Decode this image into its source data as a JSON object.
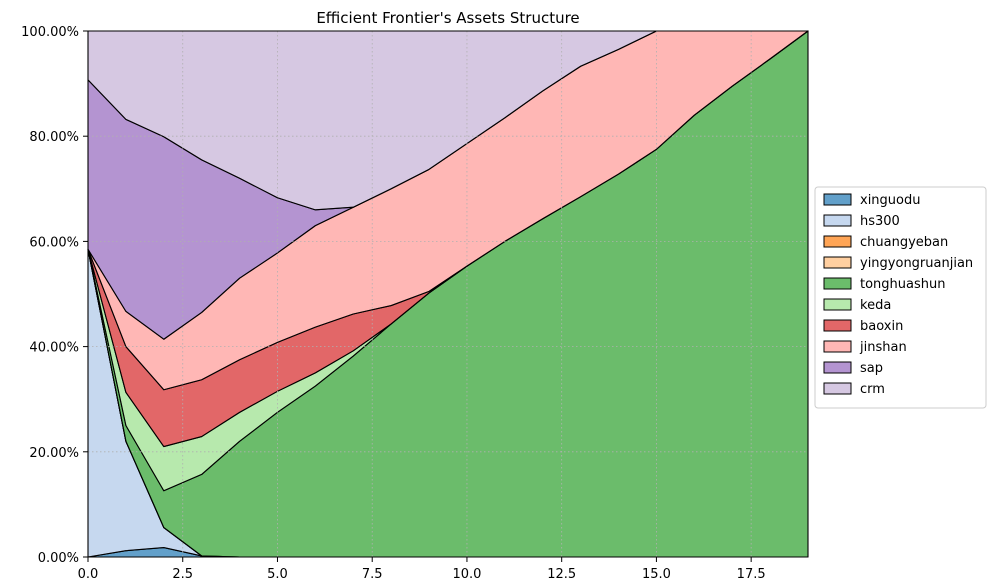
{
  "chart_data": {
    "type": "area",
    "title": "Efficient Frontier's Assets Structure",
    "xlabel": "",
    "ylabel": "",
    "xlim": [
      0,
      19
    ],
    "ylim": [
      0,
      1
    ],
    "x_ticks": [
      0,
      2.5,
      5,
      7.5,
      10,
      12.5,
      15,
      17.5
    ],
    "x_tick_labels": [
      "0.0",
      "2.5",
      "5.0",
      "7.5",
      "10.0",
      "12.5",
      "15.0",
      "17.5"
    ],
    "y_ticks": [
      0,
      0.2,
      0.4,
      0.6,
      0.8,
      1.0
    ],
    "y_tick_labels": [
      "0.00%",
      "20.00%",
      "40.00%",
      "60.00%",
      "80.00%",
      "100.00%"
    ],
    "grid": true,
    "legend_position": "right",
    "x": [
      0,
      1,
      2,
      3,
      4,
      5,
      6,
      7,
      8,
      9,
      10,
      11,
      12,
      13,
      14,
      15,
      16,
      17,
      18,
      19
    ],
    "series": [
      {
        "name": "xinguodu",
        "color": "#1f77b4",
        "values": [
          0,
          0.012,
          0.018,
          0.002,
          0,
          0,
          0,
          0,
          0,
          0,
          0,
          0,
          0,
          0,
          0,
          0,
          0,
          0,
          0,
          0
        ]
      },
      {
        "name": "hs300",
        "color": "#aec7e8",
        "values": [
          0.585,
          0.208,
          0.038,
          0,
          0,
          0,
          0,
          0,
          0,
          0,
          0,
          0,
          0,
          0,
          0,
          0,
          0,
          0,
          0,
          0
        ]
      },
      {
        "name": "chuangyeban",
        "color": "#ff7f0e",
        "values": [
          0,
          0,
          0,
          0,
          0,
          0,
          0,
          0,
          0,
          0,
          0,
          0,
          0,
          0,
          0,
          0,
          0,
          0,
          0,
          0
        ]
      },
      {
        "name": "yingyongruanjian",
        "color": "#ffbb78",
        "values": [
          0,
          0,
          0,
          0,
          0,
          0,
          0,
          0,
          0,
          0,
          0,
          0,
          0,
          0,
          0,
          0,
          0,
          0,
          0,
          0
        ]
      },
      {
        "name": "tonghuashun",
        "color": "#2ca02c",
        "values": [
          0,
          0.03,
          0.07,
          0.155,
          0.22,
          0.275,
          0.325,
          0.382,
          0.443,
          0.502,
          0.553,
          0.6,
          0.643,
          0.685,
          0.728,
          0.775,
          0.84,
          0.895,
          0.947,
          1.0
        ]
      },
      {
        "name": "keda",
        "color": "#98df8a",
        "values": [
          0,
          0.063,
          0.084,
          0.072,
          0.055,
          0.04,
          0.025,
          0.01,
          0,
          0,
          0,
          0,
          0,
          0,
          0,
          0,
          0,
          0,
          0,
          0
        ]
      },
      {
        "name": "baoxin",
        "color": "#d62728",
        "values": [
          0,
          0.087,
          0.108,
          0.108,
          0.1,
          0.093,
          0.087,
          0.07,
          0.035,
          0.003,
          0,
          0,
          0,
          0,
          0,
          0,
          0,
          0,
          0,
          0
        ]
      },
      {
        "name": "jinshan",
        "color": "#ff9896",
        "values": [
          0,
          0.067,
          0.096,
          0.128,
          0.155,
          0.17,
          0.193,
          0.203,
          0.222,
          0.232,
          0.233,
          0.235,
          0.243,
          0.248,
          0.237,
          0.225,
          0.16,
          0.105,
          0.053,
          0
        ]
      },
      {
        "name": "sap",
        "color": "#9467bd",
        "values": [
          0.322,
          0.365,
          0.385,
          0.29,
          0.19,
          0.105,
          0.03,
          0,
          0,
          0,
          0,
          0,
          0,
          0,
          0,
          0,
          0,
          0,
          0,
          0
        ]
      },
      {
        "name": "crm",
        "color": "#c5b0d5",
        "values": [
          0.093,
          0.168,
          0.201,
          0.245,
          0.28,
          0.317,
          0.34,
          0.335,
          0.3,
          0.263,
          0.214,
          0.165,
          0.114,
          0.067,
          0.035,
          0,
          0,
          0,
          0,
          0
        ]
      }
    ]
  }
}
